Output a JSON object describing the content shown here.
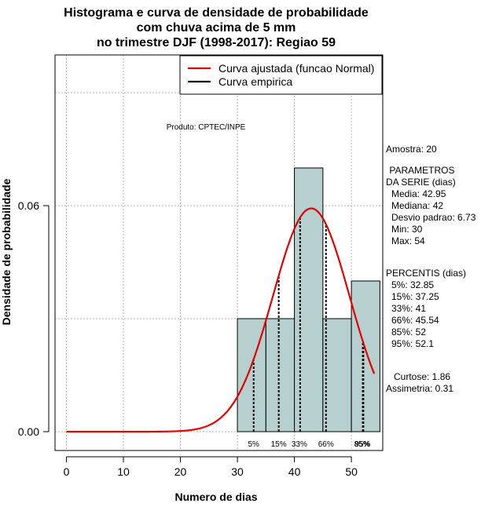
{
  "chart_data": {
    "type": "histogram",
    "title_lines": [
      "Histograma e curva de densidade de probabilidade",
      "com chuva acima de 5 mm",
      "no trimestre DJF (1998-2017): Regiao 59"
    ],
    "xlabel": "Numero de dias",
    "ylabel": "Densidade de probabilidade",
    "xlim": [
      -2,
      55.5
    ],
    "ylim": [
      -0.005,
      0.1
    ],
    "x_ticks": [
      0,
      10,
      20,
      30,
      40,
      50
    ],
    "x_tick_labels": [
      "0",
      "10",
      "20",
      "30",
      "40",
      "50"
    ],
    "y_ticks": [
      0,
      0.06
    ],
    "y_tick_labels": [
      "0.00",
      "0.06"
    ],
    "grid": true,
    "bins": [
      {
        "from": 30,
        "to": 35,
        "density": 0.03
      },
      {
        "from": 35,
        "to": 40,
        "density": 0.03
      },
      {
        "from": 40,
        "to": 45,
        "density": 0.07
      },
      {
        "from": 45,
        "to": 50,
        "density": 0.03
      },
      {
        "from": 50,
        "to": 55,
        "density": 0.04
      }
    ],
    "bar_color": "#b6cfcf",
    "fitted_curve": {
      "distribution": "normal",
      "mean": 42.95,
      "sd": 6.73,
      "from": 0,
      "to": 54,
      "color": "#e60000"
    },
    "percentile_lines": [
      {
        "label": "5%",
        "value": 32.85
      },
      {
        "label": "15%",
        "value": 37.25
      },
      {
        "label": "33%",
        "value": 41
      },
      {
        "label": "66%",
        "value": 45.54
      },
      {
        "label": "85%",
        "value": 52
      },
      {
        "label": "95%",
        "value": 52.1
      }
    ],
    "legend": {
      "position": "top-right",
      "entries": [
        {
          "label": "Curva ajustada (funcao Normal)",
          "color": "#e60000"
        },
        {
          "label": "Curva empirica",
          "color": "#000000"
        }
      ]
    },
    "annotation": "Produto: CPTEC/INPE",
    "side_panel": [
      "Amostra: 20",
      " PARAMETROS",
      "DA SERIE (dias)",
      "Media: 42.95",
      "Mediana: 42",
      "Desvio padrao: 6.73",
      "Min: 30",
      "Max: 54",
      "PERCENTIS (dias)",
      "5%: 32.85",
      "15%: 37.25",
      "33%: 41",
      "66%: 45.54",
      "85%: 52",
      "95%: 52.1",
      "Curtose: 1.86",
      "Assimetria: 0.31"
    ]
  }
}
